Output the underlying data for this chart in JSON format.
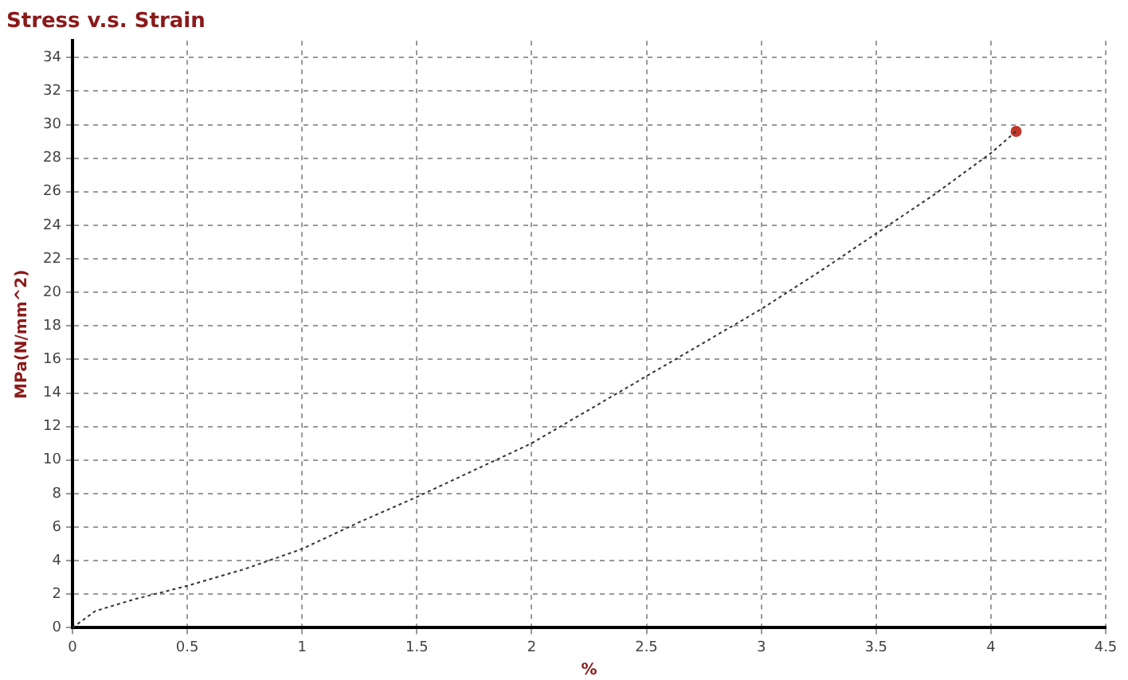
{
  "chart_data": {
    "type": "line",
    "title": "Stress v.s. Strain",
    "xlabel": "%",
    "ylabel": "MPa(N/mm^2)",
    "xlim": [
      0,
      4.5
    ],
    "xticks": [
      0,
      0.5,
      1,
      1.5,
      2,
      2.5,
      3,
      3.5,
      4,
      4.5
    ],
    "ylim": [
      0,
      35
    ],
    "yticks": [
      0,
      2,
      4,
      6,
      8,
      10,
      12,
      14,
      16,
      18,
      20,
      22,
      24,
      26,
      28,
      30,
      32,
      34
    ],
    "grid": true,
    "legend": false,
    "line_style": "dotted",
    "marker": "none",
    "series": [
      {
        "color": "#333333",
        "x": [
          0,
          0.1,
          0.27,
          0.5,
          0.75,
          1,
          1.25,
          1.5,
          1.75,
          2,
          2.25,
          2.5,
          2.75,
          3,
          3.25,
          3.5,
          3.75,
          4,
          4.11
        ],
        "values": [
          0,
          1,
          1.7,
          2.5,
          3.5,
          4.7,
          6.3,
          7.8,
          9.4,
          11,
          13,
          15,
          17,
          19,
          21.2,
          23.5,
          25.8,
          28.3,
          29.6
        ]
      },
      {
        "type": "scatter",
        "color": "#c0392b",
        "marker": "circle",
        "x": [
          4.11
        ],
        "values": [
          29.6
        ]
      }
    ]
  }
}
